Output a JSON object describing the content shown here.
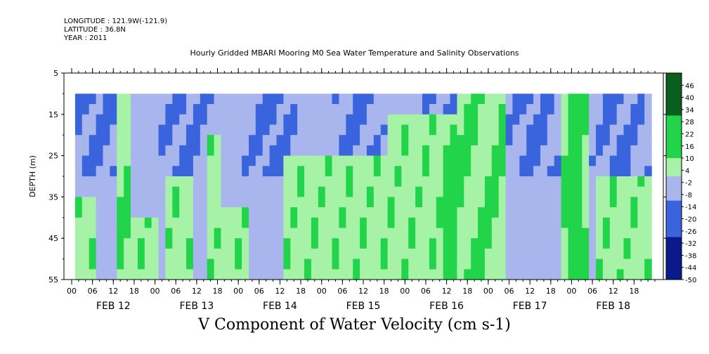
{
  "header": {
    "longitude": "LONGITUDE : 121.9W(-121.9)",
    "latitude": "LATITUDE : 36.8N",
    "year": "YEAR : 2011",
    "title": "Hourly Gridded MBARI Mooring M0 Sea Water Temperature and Salinity Observations"
  },
  "chart_data": {
    "type": "heatmap",
    "title": "V Component of Water Velocity (cm s-1)",
    "ylabel": "DEPTH (m)",
    "ylim": [
      55,
      5
    ],
    "y_ticks": [
      5,
      15,
      25,
      35,
      45,
      55
    ],
    "x_hour_labels": [
      "00",
      "06",
      "12",
      "18",
      "00",
      "06",
      "12",
      "18",
      "00",
      "06",
      "12",
      "18",
      "00",
      "06",
      "12",
      "18",
      "00",
      "06",
      "12",
      "18",
      "00",
      "06",
      "12",
      "18",
      "00",
      "06",
      "12",
      "18"
    ],
    "x_day_labels": [
      "FEB 12",
      "FEB 13",
      "FEB 14",
      "FEB 15",
      "FEB 16",
      "FEB 17",
      "FEB 18"
    ],
    "x_range_hours": [
      0,
      168
    ],
    "data_start_hour": 1,
    "data_depth_range": [
      10,
      55
    ],
    "colorbar_labels": [
      "46",
      "40",
      "34",
      "28",
      "22",
      "16",
      "10",
      "4",
      "-2",
      "-8",
      "-14",
      "-20",
      "-26",
      "-32",
      "-38",
      "-44",
      "-50"
    ],
    "colorbar_range": [
      -50,
      52
    ],
    "colors": {
      "strong_negative": "#0a1a8a",
      "negative": "#3a64dd",
      "weak_negative": "#a9b6ee",
      "weak_positive": "#a6f2a6",
      "positive": "#22d44a",
      "strong_positive": "#0a5e1e"
    },
    "approx_field": [
      {
        "t0": 1,
        "t1": 6,
        "pos_above_depth": 35,
        "note": ""
      },
      {
        "t0": 12,
        "t1": 16,
        "pos_depth": 10
      },
      {
        "t0": 16,
        "t1": 24,
        "pos_above_depth": 40
      },
      {
        "t0": 26,
        "t1": 34,
        "pos_above_depth": 30
      },
      {
        "t0": 38,
        "t1": 42,
        "pos_above_depth": 20
      },
      {
        "t0": 40,
        "t1": 50,
        "pos_above_depth": 37
      },
      {
        "t0": 60,
        "t1": 90,
        "pos_above_depth": 25
      },
      {
        "t0": 90,
        "t1": 110,
        "pos_above_depth": 15
      },
      {
        "t0": 110,
        "t1": 124,
        "pos_depth": 10
      },
      {
        "t0": 140,
        "t1": 148,
        "pos_depth": 10
      },
      {
        "t0": 150,
        "t1": 166,
        "pos_above_depth": 30
      }
    ]
  }
}
